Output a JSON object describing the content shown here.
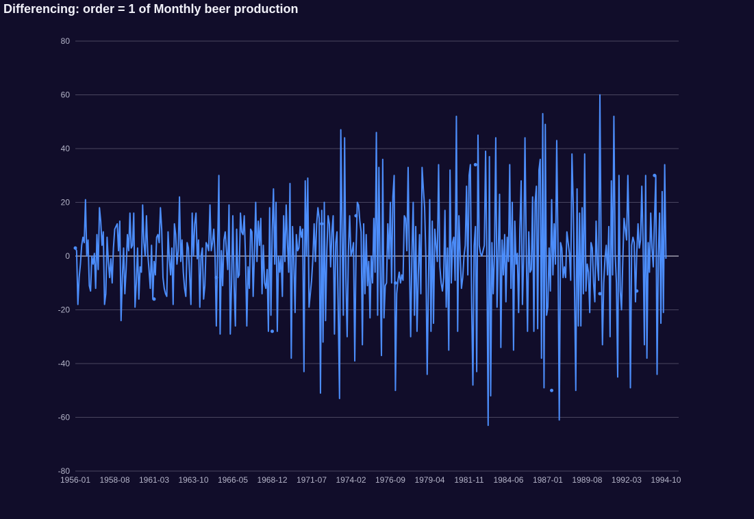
{
  "colors": {
    "background": "#110d2a",
    "grid": "#4a4660",
    "zero_line": "#e8e8f0",
    "series": "#4c8dfa",
    "tick_text": "#b4b4c8",
    "title_text": "#f0f0f8"
  },
  "chart_data": {
    "type": "line",
    "title": "Differencing: order = 1 of Monthly beer production",
    "xlabel": "",
    "ylabel": "",
    "ylim": [
      -80,
      80
    ],
    "yticks": [
      -80,
      -60,
      -40,
      -20,
      0,
      20,
      40,
      60,
      80
    ],
    "x_start": "1956-01",
    "x_end": "1995-08",
    "xticks": [
      "1956-01",
      "1958-08",
      "1961-03",
      "1963-10",
      "1966-05",
      "1968-12",
      "1971-07",
      "1974-02",
      "1976-09",
      "1979-04",
      "1981-11",
      "1984-06",
      "1987-01",
      "1989-08",
      "1992-03",
      "1994-10"
    ],
    "grid": true,
    "legend": "none",
    "series": [
      {
        "values": [
          3,
          2,
          -18,
          -8,
          -3,
          4,
          7,
          5,
          21,
          0,
          6,
          -11,
          -13,
          0,
          -3,
          1,
          -12,
          8,
          -5,
          18,
          13,
          4,
          9,
          -18,
          -14,
          7,
          -2,
          -8,
          -1,
          -10,
          3,
          10,
          11,
          12,
          2,
          13,
          -24,
          -8,
          3,
          -14,
          -5,
          8,
          2,
          16,
          3,
          4,
          16,
          -19,
          -10,
          3,
          -16,
          -4,
          -6,
          19,
          5,
          0,
          15,
          1,
          -5,
          -12,
          4,
          -16,
          -2,
          -7,
          7,
          8,
          5,
          18,
          10,
          -8,
          -12,
          -14,
          -15,
          9,
          -1,
          -7,
          3,
          -18,
          12,
          8,
          -3,
          2,
          22,
          -2,
          6,
          -6,
          -12,
          -15,
          5,
          3,
          -7,
          -18,
          16,
          0,
          12,
          16,
          -1,
          6,
          -19,
          0,
          3,
          -16,
          -11,
          5,
          4,
          2,
          19,
          2,
          5,
          10,
          0,
          -26,
          2,
          30,
          -29,
          2,
          -11,
          6,
          9,
          2,
          -5,
          19,
          -29,
          -10,
          15,
          -11,
          -26,
          10,
          -8,
          -7,
          16,
          9,
          8,
          15,
          -1,
          -26,
          -4,
          -12,
          10,
          9,
          -15,
          1,
          20,
          -2,
          13,
          4,
          14,
          -14,
          4,
          -10,
          -12,
          -5,
          -28,
          18,
          -22,
          9,
          25,
          -3,
          20,
          -28,
          0,
          -6,
          0,
          -15,
          15,
          -2,
          19,
          5,
          -6,
          27,
          -38,
          11,
          -1,
          -21,
          8,
          2,
          3,
          11,
          7,
          10,
          -43,
          28,
          0,
          29,
          -19,
          -14,
          -9,
          -1,
          12,
          -2,
          12,
          18,
          14,
          -51,
          17,
          -32,
          20,
          -24,
          2,
          15,
          12,
          -4,
          9,
          15,
          -29,
          5,
          9,
          -21,
          -53,
          47,
          10,
          -22,
          44,
          -8,
          -30,
          2,
          15,
          0,
          2,
          5,
          -39,
          2,
          20,
          19,
          13,
          9,
          -33,
          12,
          -14,
          8,
          -11,
          -2,
          -23,
          0,
          -10,
          14,
          -6,
          46,
          -22,
          33,
          -5,
          -37,
          36,
          -23,
          -11,
          -10,
          12,
          -1,
          20,
          -10,
          22,
          30,
          -50,
          -14,
          -9,
          -6,
          -10,
          -7,
          -9,
          15,
          14,
          2,
          33,
          -1,
          -30,
          1,
          20,
          -22,
          11,
          -28,
          -7,
          8,
          -14,
          33,
          25,
          18,
          -1,
          -44,
          -11,
          21,
          -28,
          13,
          -25,
          10,
          4,
          -2,
          34,
          -4,
          -10,
          -13,
          -8,
          17,
          -19,
          3,
          -35,
          32,
          -10,
          5,
          7,
          -9,
          52,
          -28,
          15,
          0,
          -12,
          -8,
          0,
          4,
          26,
          -7,
          30,
          34,
          -17,
          -48,
          4,
          11,
          -43,
          45,
          4,
          1,
          0,
          2,
          4,
          39,
          0,
          -63,
          37,
          -52,
          5,
          -14,
          1,
          44,
          -19,
          2,
          23,
          -34,
          6,
          -7,
          8,
          -17,
          7,
          -2,
          34,
          -12,
          20,
          -35,
          13,
          -3,
          1,
          -21,
          10,
          28,
          -18,
          0,
          44,
          3,
          -28,
          9,
          -6,
          -5,
          22,
          -28,
          20,
          26,
          -27,
          32,
          36,
          -38,
          53,
          -49,
          49,
          -22,
          -19,
          3,
          -13,
          21,
          -7,
          12,
          -3,
          43,
          3,
          -61,
          5,
          3,
          -8,
          -4,
          -8,
          9,
          5,
          1,
          -9,
          38,
          19,
          -12,
          -50,
          25,
          -26,
          16,
          -26,
          18,
          -14,
          38,
          -13,
          -3,
          -6,
          -21,
          5,
          3,
          -10,
          -17,
          13,
          -3,
          -9,
          60,
          0,
          -33,
          -10,
          -1,
          4,
          -7,
          11,
          -30,
          28,
          -7,
          52,
          1,
          -10,
          -45,
          30,
          -13,
          -20,
          -2,
          14,
          10,
          6,
          30,
          7,
          -49,
          4,
          7,
          5,
          -17,
          1,
          12,
          3,
          6,
          26,
          5,
          -33,
          30,
          -38,
          5,
          -6,
          16,
          3,
          -4,
          14,
          30,
          -44,
          0,
          16,
          -25,
          24,
          -21,
          34,
          -1
        ]
      }
    ],
    "markers": [
      {
        "x": "1956-01",
        "y": 3
      },
      {
        "x": "1961-03",
        "y": -16
      },
      {
        "x": "1965-04",
        "y": -8
      },
      {
        "x": "1968-12",
        "y": -28
      },
      {
        "x": "1972-03",
        "y": 12
      },
      {
        "x": "1974-06",
        "y": 15
      },
      {
        "x": "1977-01",
        "y": -10
      },
      {
        "x": "1982-04",
        "y": 34
      },
      {
        "x": "1987-04",
        "y": -50
      },
      {
        "x": "1990-06",
        "y": -14
      },
      {
        "x": "1992-11",
        "y": -13
      },
      {
        "x": "1994-01",
        "y": 30
      }
    ]
  }
}
